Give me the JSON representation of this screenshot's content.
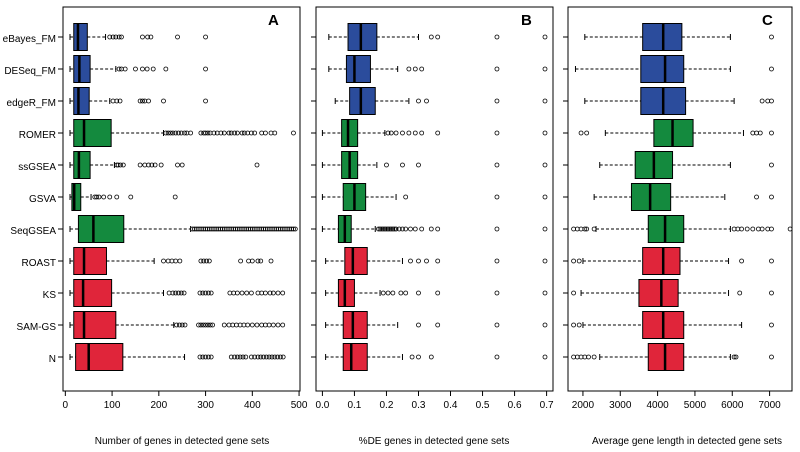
{
  "chart_data": {
    "type": "boxplot",
    "orientation": "horizontal",
    "categories": [
      "eBayes_FM",
      "DESeq_FM",
      "edgeR_FM",
      "ROMER",
      "ssGSEA",
      "GSVA",
      "SeqGSEA",
      "ROAST",
      "KS",
      "SAM-GS",
      "N"
    ],
    "colors": {
      "blue": "#2B4C9C",
      "green": "#148A3E",
      "red": "#E0253A"
    },
    "category_colors": [
      "blue",
      "blue",
      "blue",
      "green",
      "green",
      "green",
      "green",
      "red",
      "red",
      "red",
      "red"
    ],
    "panels": [
      {
        "letter": "A",
        "xlabel": "Number of genes in detected gene sets",
        "xlim": [
          -5,
          502
        ],
        "ticks": [
          0,
          100,
          200,
          300,
          400,
          500
        ],
        "tick_labels": [
          "0",
          "100",
          "200",
          "300",
          "400",
          "500"
        ],
        "boxes": [
          {
            "min": 10,
            "q1": 18,
            "median": 27,
            "q3": 47,
            "max": 86,
            "outliers": [
              95,
              102,
              108,
              115,
              120,
              165,
              176,
              183,
              240,
              300
            ]
          },
          {
            "min": 10,
            "q1": 18,
            "median": 30,
            "q3": 53,
            "max": 108,
            "outliers": [
              115,
              120,
              128,
              150,
              165,
              175,
              188,
              215,
              300
            ]
          },
          {
            "min": 10,
            "q1": 18,
            "median": 28,
            "q3": 51,
            "max": 95,
            "outliers": [
              102,
              110,
              117,
              160,
              165,
              170,
              178,
              210,
              300
            ]
          },
          {
            "min": 10,
            "q1": 18,
            "median": 40,
            "q3": 98,
            "max": 210,
            "outliers": [
              215,
              220,
              225,
              230,
              236,
              242,
              248,
              255,
              260,
              268,
              290,
              296,
              300,
              305,
              310,
              318,
              325,
              333,
              340,
              350,
              355,
              362,
              368,
              378,
              383,
              390,
              398,
              405,
              420,
              428,
              440,
              448,
              488
            ]
          },
          {
            "min": 10,
            "q1": 18,
            "median": 29,
            "q3": 53,
            "max": 105,
            "outliers": [
              110,
              113,
              118,
              124,
              160,
              170,
              178,
              185,
              192,
              205,
              240,
              250,
              410
            ]
          },
          {
            "min": 10,
            "q1": 14,
            "median": 19,
            "q3": 33,
            "max": 55,
            "outliers": [
              63,
              67,
              72,
              82,
              95,
              110,
              140,
              235
            ]
          },
          {
            "min": 10,
            "q1": 28,
            "median": 60,
            "q3": 125,
            "max": 268,
            "outliers": [
              272,
              276,
              280,
              284,
              288,
              292,
              296,
              300,
              304,
              308,
              312,
              316,
              320,
              324,
              328,
              332,
              336,
              340,
              344,
              348,
              352,
              356,
              360,
              364,
              368,
              372,
              376,
              380,
              384,
              388,
              392,
              396,
              400,
              404,
              408,
              412,
              416,
              420,
              424,
              428,
              432,
              436,
              440,
              444,
              448,
              452,
              456,
              460,
              464,
              468,
              472,
              476,
              480,
              484,
              488,
              492
            ]
          },
          {
            "min": 10,
            "q1": 18,
            "median": 40,
            "q3": 88,
            "max": 190,
            "outliers": [
              210,
              220,
              228,
              236,
              245,
              290,
              296,
              302,
              308,
              375,
              392,
              400,
              412,
              418,
              440
            ]
          },
          {
            "min": 10,
            "q1": 18,
            "median": 38,
            "q3": 99,
            "max": 210,
            "outliers": [
              222,
              230,
              236,
              242,
              248,
              254,
              288,
              294,
              300,
              306,
              312,
              352,
              360,
              368,
              378,
              388,
              398,
              412,
              420,
              428,
              438,
              445,
              455,
              465
            ]
          },
          {
            "min": 10,
            "q1": 18,
            "median": 40,
            "q3": 108,
            "max": 232,
            "outliers": [
              238,
              244,
              250,
              256,
              285,
              290,
              295,
              300,
              305,
              310,
              315,
              340,
              350,
              358,
              366,
              374,
              382,
              390,
              400,
              410,
              420,
              428,
              436,
              445,
              455,
              465
            ]
          },
          {
            "min": 10,
            "q1": 22,
            "median": 50,
            "q3": 123,
            "max": 255,
            "outliers": [
              288,
              294,
              300,
              306,
              312,
              355,
              362,
              368,
              374,
              380,
              386,
              398,
              405,
              412,
              418,
              424,
              430,
              436,
              442,
              448,
              454,
              460,
              466
            ]
          }
        ]
      },
      {
        "letter": "B",
        "xlabel": "%DE genes in detected gene sets",
        "xlim": [
          -0.02,
          0.72
        ],
        "ticks": [
          0,
          0.1,
          0.2,
          0.3,
          0.4,
          0.5,
          0.6,
          0.7
        ],
        "tick_labels": [
          "0.0",
          "0.1",
          "0.2",
          "0.3",
          "0.4",
          "0.5",
          "0.6",
          "0.7"
        ],
        "boxes": [
          {
            "min": 0.02,
            "q1": 0.08,
            "median": 0.12,
            "q3": 0.17,
            "max": 0.3,
            "outliers": [
              0.34,
              0.36,
              0.545,
              0.695
            ]
          },
          {
            "min": 0.02,
            "q1": 0.075,
            "median": 0.1,
            "q3": 0.15,
            "max": 0.235,
            "outliers": [
              0.27,
              0.29,
              0.31,
              0.545,
              0.695
            ]
          },
          {
            "min": 0.04,
            "q1": 0.085,
            "median": 0.12,
            "q3": 0.165,
            "max": 0.27,
            "outliers": [
              0.3,
              0.325,
              0.545,
              0.695
            ]
          },
          {
            "min": 0.0,
            "q1": 0.06,
            "median": 0.08,
            "q3": 0.11,
            "max": 0.195,
            "outliers": [
              0.205,
              0.215,
              0.23,
              0.25,
              0.27,
              0.29,
              0.31,
              0.36,
              0.545,
              0.695
            ]
          },
          {
            "min": 0.0,
            "q1": 0.06,
            "median": 0.085,
            "q3": 0.11,
            "max": 0.17,
            "outliers": [
              0.2,
              0.25,
              0.3,
              0.545,
              0.695
            ]
          },
          {
            "min": 0.0,
            "q1": 0.065,
            "median": 0.1,
            "q3": 0.135,
            "max": 0.23,
            "outliers": [
              0.26,
              0.545,
              0.695
            ]
          },
          {
            "min": 0.0,
            "q1": 0.05,
            "median": 0.07,
            "q3": 0.09,
            "max": 0.165,
            "outliers": [
              0.175,
              0.18,
              0.185,
              0.19,
              0.195,
              0.2,
              0.205,
              0.21,
              0.215,
              0.22,
              0.225,
              0.23,
              0.24,
              0.25,
              0.26,
              0.275,
              0.29,
              0.31,
              0.34,
              0.36,
              0.545,
              0.695
            ]
          },
          {
            "min": 0.01,
            "q1": 0.07,
            "median": 0.095,
            "q3": 0.14,
            "max": 0.25,
            "outliers": [
              0.275,
              0.3,
              0.325,
              0.36,
              0.545,
              0.695
            ]
          },
          {
            "min": 0.01,
            "q1": 0.05,
            "median": 0.07,
            "q3": 0.1,
            "max": 0.18,
            "outliers": [
              0.19,
              0.205,
              0.22,
              0.245,
              0.26,
              0.3,
              0.36,
              0.545,
              0.695
            ]
          },
          {
            "min": 0.01,
            "q1": 0.065,
            "median": 0.095,
            "q3": 0.14,
            "max": 0.235,
            "outliers": [
              0.3,
              0.36,
              0.545,
              0.695
            ]
          },
          {
            "min": 0.01,
            "q1": 0.065,
            "median": 0.09,
            "q3": 0.14,
            "max": 0.25,
            "outliers": [
              0.28,
              0.3,
              0.34,
              0.545,
              0.695
            ]
          }
        ]
      },
      {
        "letter": "C",
        "xlabel": "Average gene length in detected gene sets",
        "xlim": [
          1600,
          7600
        ],
        "ticks": [
          2000,
          3000,
          4000,
          5000,
          6000,
          7000
        ],
        "tick_labels": [
          "2000",
          "3000",
          "4000",
          "5000",
          "6000",
          "7000"
        ],
        "boxes": [
          {
            "min": 2050,
            "q1": 3600,
            "median": 4150,
            "q3": 4650,
            "max": 5950,
            "outliers": [
              7050
            ]
          },
          {
            "min": 1800,
            "q1": 3550,
            "median": 4200,
            "q3": 4700,
            "max": 5950,
            "outliers": [
              7050
            ]
          },
          {
            "min": 2050,
            "q1": 3550,
            "median": 4150,
            "q3": 4750,
            "max": 6050,
            "outliers": [
              6800,
              6950,
              7050
            ]
          },
          {
            "min": 2600,
            "q1": 3900,
            "median": 4400,
            "q3": 4950,
            "max": 6300,
            "outliers": [
              1950,
              2100,
              6550,
              6650,
              6750,
              7050
            ]
          },
          {
            "min": 2450,
            "q1": 3400,
            "median": 3900,
            "q3": 4400,
            "max": 5950,
            "outliers": [
              7050
            ]
          },
          {
            "min": 2300,
            "q1": 3300,
            "median": 3800,
            "q3": 4350,
            "max": 5800,
            "outliers": [
              6650,
              7050
            ]
          },
          {
            "min": 2350,
            "q1": 3750,
            "median": 4200,
            "q3": 4700,
            "max": 5950,
            "outliers": [
              1750,
              1850,
              1950,
              2050,
              2100,
              2300,
              6050,
              6150,
              6250,
              6400,
              6550,
              6700,
              6800,
              6950,
              7050,
              7550
            ]
          },
          {
            "min": 2000,
            "q1": 3600,
            "median": 4150,
            "q3": 4600,
            "max": 5900,
            "outliers": [
              1750,
              1900,
              6250,
              7050
            ]
          },
          {
            "min": 1950,
            "q1": 3500,
            "median": 4100,
            "q3": 4550,
            "max": 5900,
            "outliers": [
              1750,
              6200,
              7050
            ]
          },
          {
            "min": 2000,
            "q1": 3600,
            "median": 4150,
            "q3": 4700,
            "max": 6250,
            "outliers": [
              1750,
              1900,
              7050
            ]
          },
          {
            "min": 2450,
            "q1": 3750,
            "median": 4200,
            "q3": 4700,
            "max": 5950,
            "outliers": [
              1750,
              1850,
              1950,
              2050,
              2150,
              2300,
              6050,
              6100,
              7050
            ]
          }
        ]
      }
    ]
  }
}
